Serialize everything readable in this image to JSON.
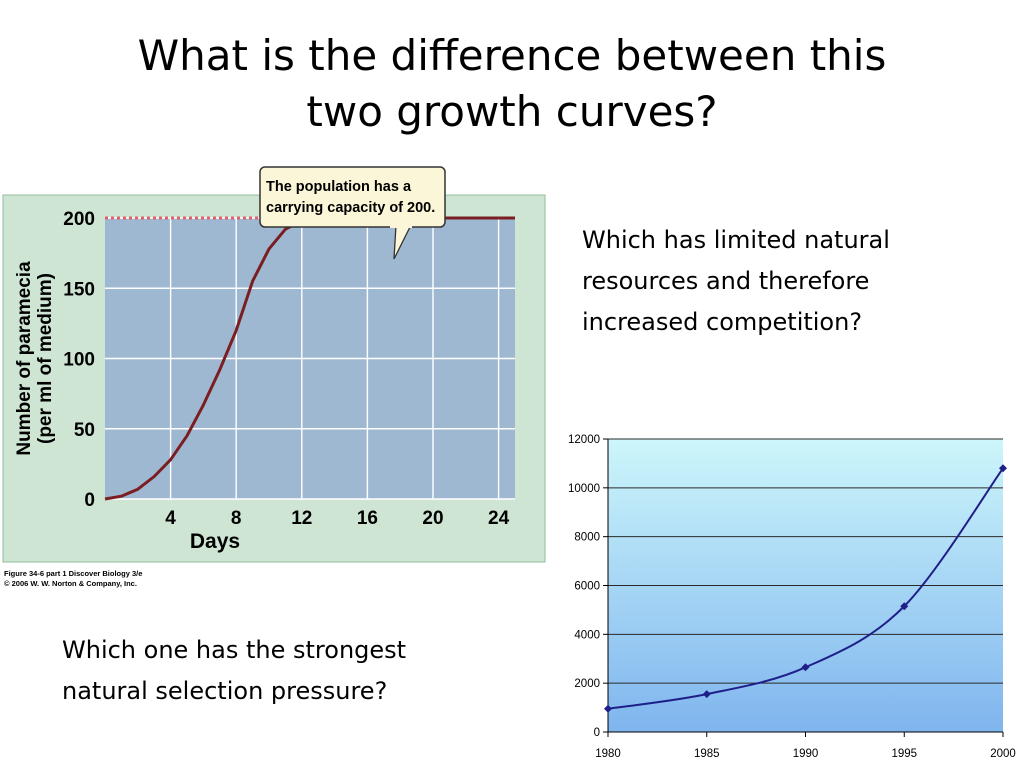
{
  "slide": {
    "title_lines": [
      "What is the difference between this",
      "two growth curves?"
    ],
    "question_top_lines": [
      "Which has limited natural",
      "resources and therefore",
      "increased competition?"
    ],
    "question_bottom_lines": [
      "Which one has the strongest",
      "natural selection pressure?"
    ]
  },
  "colors": {
    "logistic_plot_bg": "#9fb8d2",
    "logistic_frame": "#cfe5d3",
    "logistic_curve": "#7a1e22",
    "capacity_line": "#e0606a",
    "callout_bg": "#fbf6d8",
    "callout_border": "#333333",
    "exp_line": "#1f1f8a",
    "exp_bg_top": "#cdf6fb",
    "exp_bg_bottom": "#7fb5ee"
  },
  "chart_data": [
    {
      "type": "line",
      "title": "",
      "xlabel": "Days",
      "ylabel_lines": [
        "Number of paramecia",
        "(per ml of medium)"
      ],
      "x_ticks": [
        4,
        8,
        12,
        16,
        20,
        24
      ],
      "y_ticks": [
        0,
        50,
        100,
        150,
        200
      ],
      "xlim": [
        0,
        25
      ],
      "ylim": [
        0,
        200
      ],
      "grid": true,
      "series": [
        {
          "x": [
            0,
            1,
            2,
            3,
            4,
            5,
            6,
            7,
            8,
            9,
            10,
            11,
            12,
            13,
            14,
            16,
            18,
            20,
            22,
            24,
            25
          ],
          "values": [
            0,
            2,
            7,
            16,
            28,
            45,
            67,
            92,
            120,
            155,
            178,
            192,
            198,
            200,
            200,
            200,
            200,
            200,
            200,
            200,
            200
          ]
        }
      ],
      "reference_line": {
        "y": 200,
        "x_range": [
          0,
          12
        ]
      },
      "annotation_lines": [
        "The population has a",
        "carrying capacity of 200."
      ],
      "caption_lines": [
        "Figure 34-6 part 1  Discover Biology 3/e",
        "© 2006 W. W. Norton & Company, Inc."
      ]
    },
    {
      "type": "line",
      "title": "",
      "xlabel": "",
      "ylabel": "",
      "x_ticks": [
        1980,
        1985,
        1990,
        1995,
        2000
      ],
      "y_ticks": [
        0,
        2000,
        4000,
        6000,
        8000,
        10000,
        12000
      ],
      "xlim": [
        1980,
        2000
      ],
      "ylim": [
        0,
        12000
      ],
      "grid": true,
      "series": [
        {
          "x": [
            1980,
            1985,
            1990,
            1995,
            2000
          ],
          "values": [
            950,
            1550,
            2650,
            5150,
            10800
          ],
          "markers": true
        }
      ]
    }
  ]
}
